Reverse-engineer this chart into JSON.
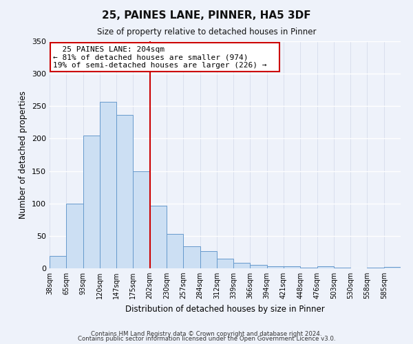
{
  "title": "25, PAINES LANE, PINNER, HA5 3DF",
  "subtitle": "Size of property relative to detached houses in Pinner",
  "xlabel": "Distribution of detached houses by size in Pinner",
  "ylabel": "Number of detached properties",
  "tick_labels": [
    "38sqm",
    "65sqm",
    "93sqm",
    "120sqm",
    "147sqm",
    "175sqm",
    "202sqm",
    "230sqm",
    "257sqm",
    "284sqm",
    "312sqm",
    "339sqm",
    "366sqm",
    "394sqm",
    "421sqm",
    "448sqm",
    "476sqm",
    "503sqm",
    "530sqm",
    "558sqm",
    "585sqm"
  ],
  "bar_heights": [
    19,
    100,
    205,
    257,
    236,
    150,
    96,
    53,
    34,
    26,
    15,
    8,
    5,
    3,
    3,
    1,
    3,
    1,
    0,
    1,
    2
  ],
  "bar_color": "#ccdff3",
  "bar_edge_color": "#6699cc",
  "vline_x_index": 6,
  "vline_color": "#cc0000",
  "ylim": [
    0,
    350
  ],
  "yticks": [
    0,
    50,
    100,
    150,
    200,
    250,
    300,
    350
  ],
  "annotation_line1": "25 PAINES LANE: 204sqm",
  "annotation_line2": "← 81% of detached houses are smaller (974)",
  "annotation_line3": "19% of semi-detached houses are larger (226) →",
  "annotation_box_color": "#ffffff",
  "annotation_box_edge": "#cc0000",
  "footer_line1": "Contains HM Land Registry data © Crown copyright and database right 2024.",
  "footer_line2": "Contains public sector information licensed under the Open Government Licence v3.0.",
  "background_color": "#eef2fa"
}
